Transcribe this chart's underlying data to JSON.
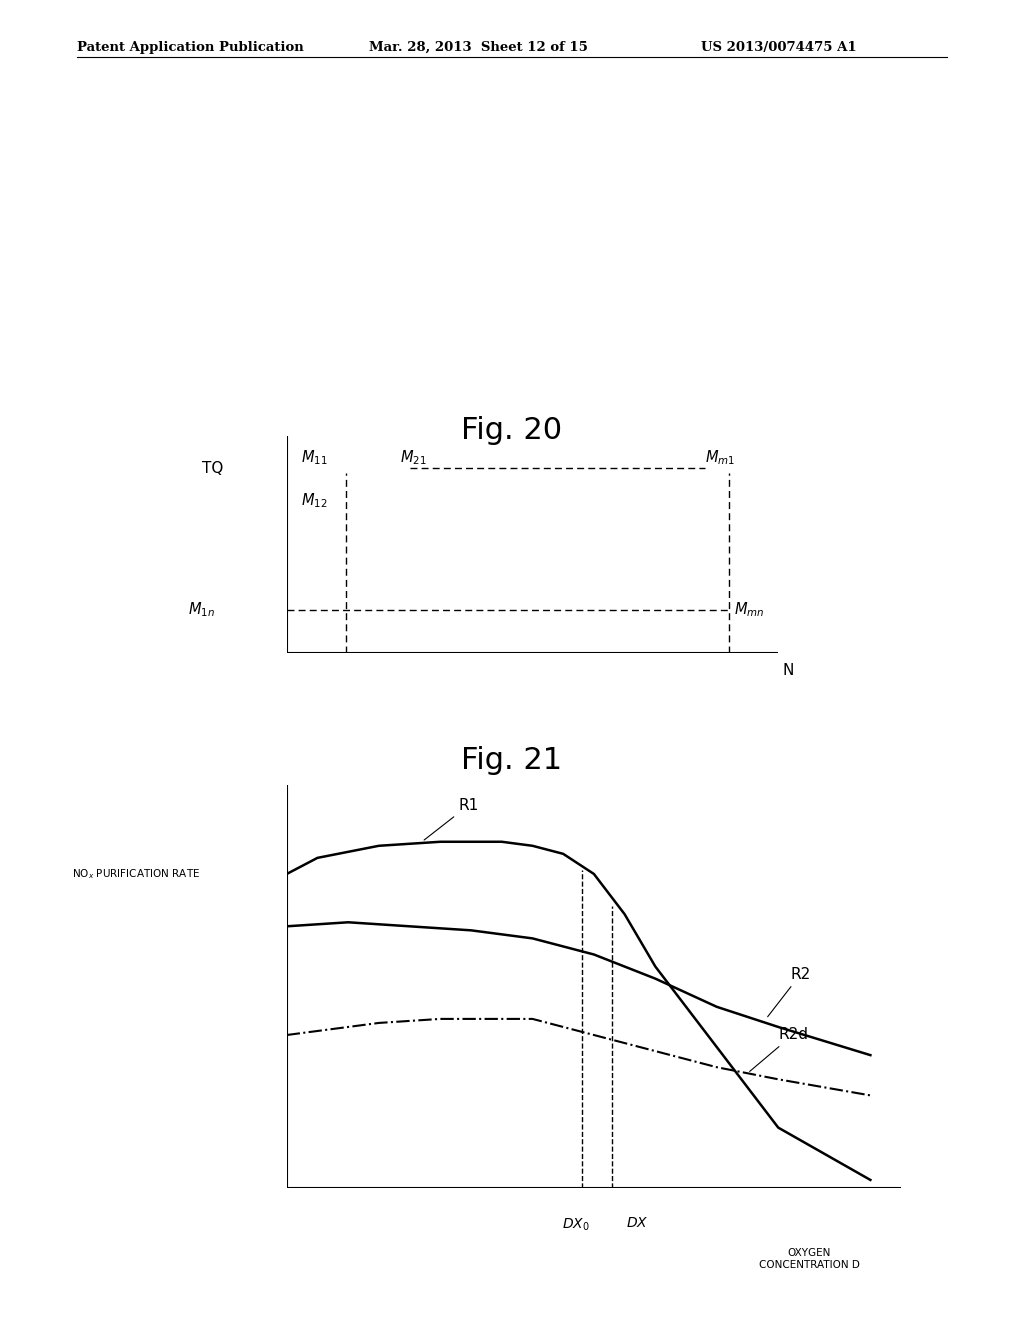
{
  "header_left": "Patent Application Publication",
  "header_mid": "Mar. 28, 2013  Sheet 12 of 15",
  "header_right": "US 2013/0074475 A1",
  "fig20_title": "Fig. 20",
  "fig21_title": "Fig. 21",
  "background_color": "#ffffff"
}
